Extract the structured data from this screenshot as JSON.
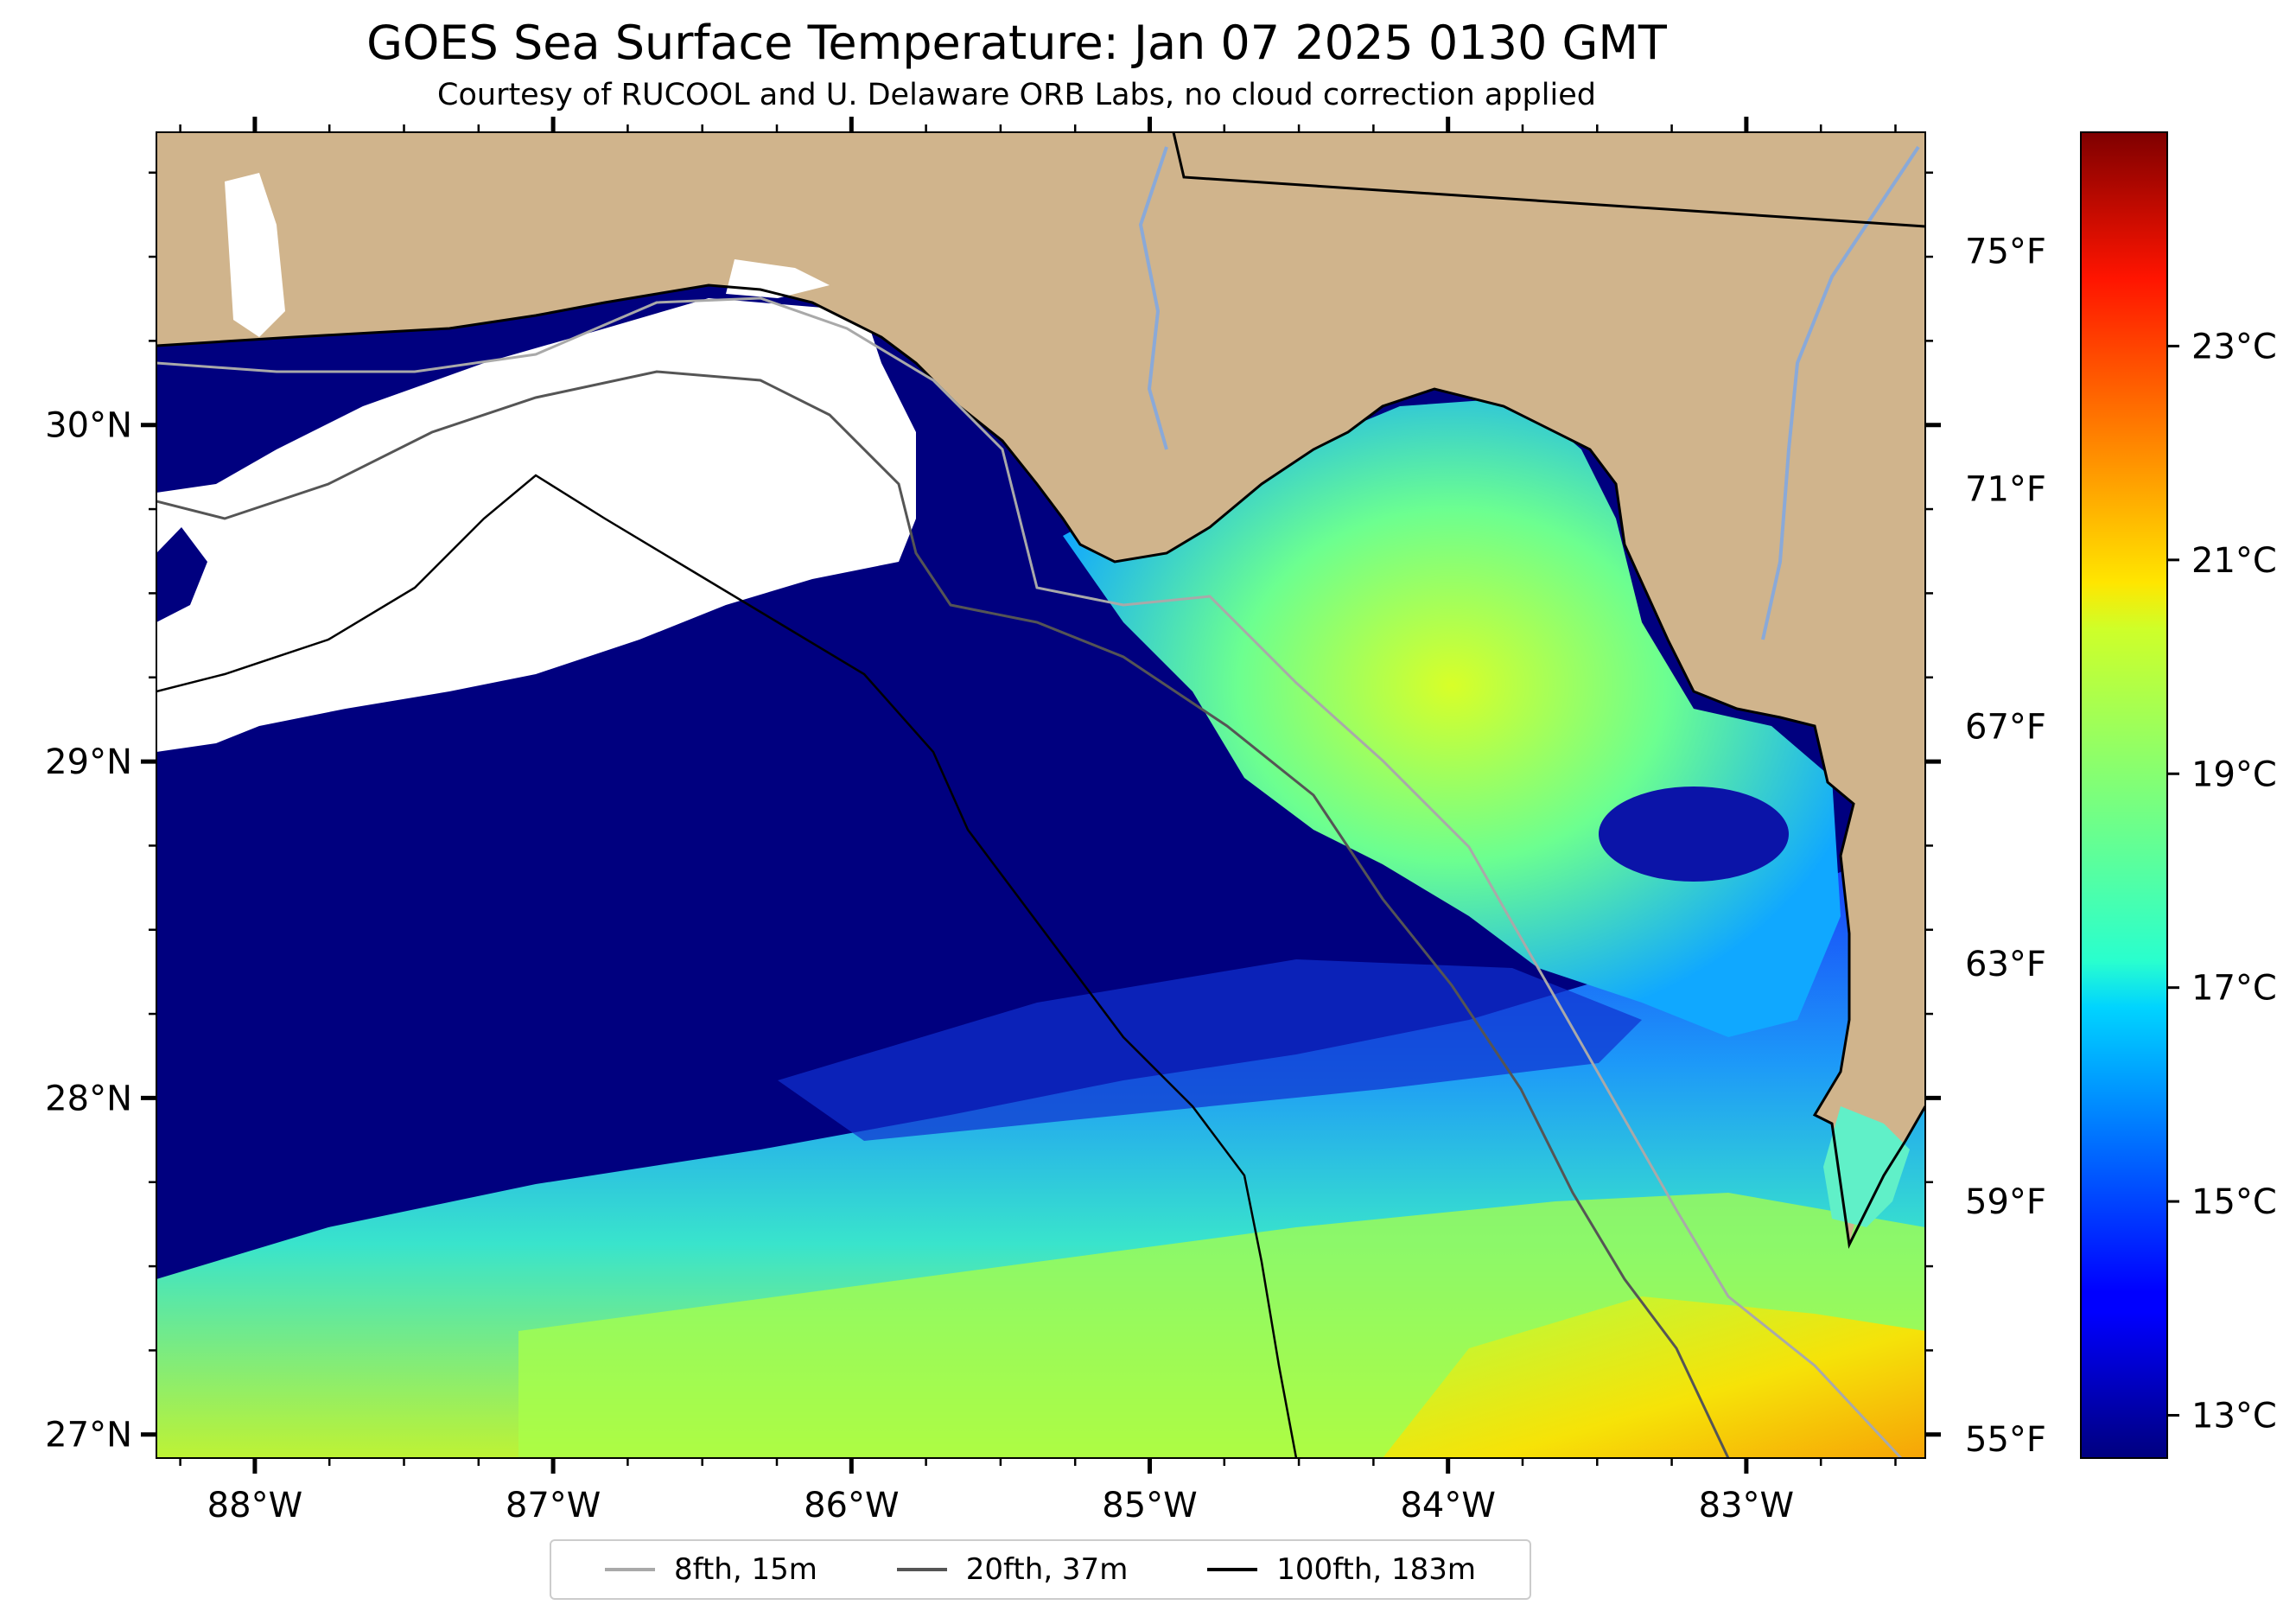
{
  "title": "GOES Sea Surface Temperature: Jan 07 2025 0130 GMT",
  "subtitle": "Courtesy of RUCOOL and U. Delaware ORB Labs, no cloud correction applied",
  "map": {
    "lon_range": [
      -88.33,
      -82.4
    ],
    "lat_range": [
      26.93,
      30.87
    ],
    "lon_ticks": [
      {
        "value": -88,
        "label": "88°W"
      },
      {
        "value": -87,
        "label": "87°W"
      },
      {
        "value": -86,
        "label": "86°W"
      },
      {
        "value": -85,
        "label": "85°W"
      },
      {
        "value": -84,
        "label": "84°W"
      },
      {
        "value": -83,
        "label": "83°W"
      }
    ],
    "lat_ticks": [
      {
        "value": 27,
        "label": "27°N"
      },
      {
        "value": 28,
        "label": "28°N"
      },
      {
        "value": 29,
        "label": "29°N"
      },
      {
        "value": 30,
        "label": "30°N"
      }
    ],
    "fahrenheit_ticks": [
      {
        "value": 55,
        "label": "55°F"
      },
      {
        "value": 59,
        "label": "59°F"
      },
      {
        "value": 63,
        "label": "63°F"
      },
      {
        "value": 67,
        "label": "67°F"
      },
      {
        "value": 71,
        "label": "71°F"
      },
      {
        "value": 75,
        "label": "75°F"
      }
    ],
    "land_color": "#d0b48c",
    "cloud_color": "#ffffff",
    "colormap": "jet"
  },
  "colorbar": {
    "range_c": [
      12.6,
      25.0
    ],
    "ticks": [
      {
        "value": 13,
        "label": "13°C"
      },
      {
        "value": 15,
        "label": "15°C"
      },
      {
        "value": 17,
        "label": "17°C"
      },
      {
        "value": 19,
        "label": "19°C"
      },
      {
        "value": 21,
        "label": "21°C"
      },
      {
        "value": 23,
        "label": "23°C"
      }
    ]
  },
  "legend": [
    {
      "label": "8fth, 15m",
      "color": "#a9a9a9"
    },
    {
      "label": "20fth, 37m",
      "color": "#555555"
    },
    {
      "label": "100fth, 183m",
      "color": "#000000"
    }
  ]
}
